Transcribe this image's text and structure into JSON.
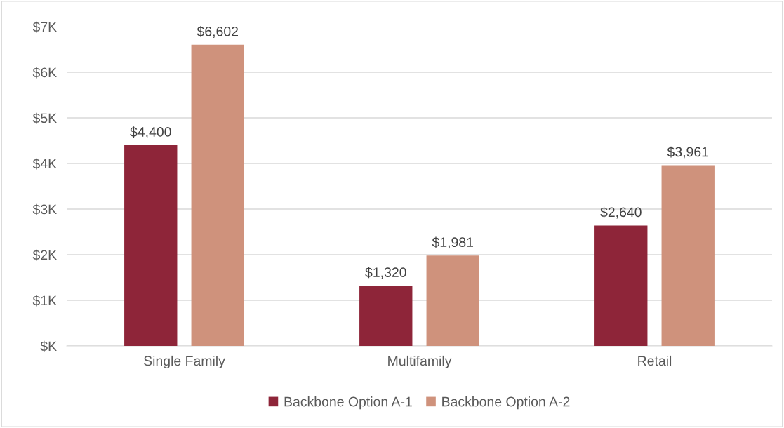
{
  "chart_data": {
    "type": "bar",
    "categories": [
      "Single Family",
      "Multifamily",
      "Retail"
    ],
    "series": [
      {
        "name": "Backbone Option A-1",
        "color": "#8e2539",
        "values": [
          4400,
          1320,
          2640
        ],
        "value_labels": [
          "$4,400",
          "$1,320",
          "$2,640"
        ]
      },
      {
        "name": "Backbone Option A-2",
        "color": "#cf927c",
        "values": [
          6602,
          1981,
          3961
        ],
        "value_labels": [
          "$6,602",
          "$1,981",
          "$3,961"
        ]
      }
    ],
    "ylim": [
      0,
      7000
    ],
    "yticks": [
      {
        "value": 0,
        "label": "$K"
      },
      {
        "value": 1000,
        "label": "$1K"
      },
      {
        "value": 2000,
        "label": "$2K"
      },
      {
        "value": 3000,
        "label": "$3K"
      },
      {
        "value": 4000,
        "label": "$4K"
      },
      {
        "value": 5000,
        "label": "$5K"
      },
      {
        "value": 6000,
        "label": "$6K"
      },
      {
        "value": 7000,
        "label": "$7K"
      }
    ],
    "grid": "y",
    "legend": "bottom"
  }
}
